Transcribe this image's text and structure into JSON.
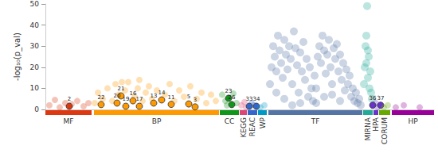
{
  "chart_data": {
    "type": "scatter",
    "y_label": "-log₁₀(p_val)",
    "xlim": [
      0,
      488
    ],
    "ylim": [
      0,
      50
    ],
    "yticks": [
      0,
      10,
      20,
      30,
      40,
      50
    ],
    "grid": false,
    "tick_labels": "y",
    "series": [
      {
        "name": "MF",
        "color": "#dc3912",
        "start": 0,
        "end": 58,
        "points": [
          [
            5,
            2,
            null
          ],
          [
            12,
            4.5,
            null
          ],
          [
            18,
            1,
            null
          ],
          [
            25,
            3,
            null
          ],
          [
            33,
            2.5,
            null
          ],
          [
            40,
            4,
            null
          ],
          [
            48,
            1.5,
            null
          ],
          [
            54,
            3,
            null
          ],
          [
            30,
            1.5,
            "2"
          ]
        ]
      },
      {
        "name": "BP",
        "color": "#ff9900",
        "start": 61,
        "end": 218,
        "points": [
          [
            62,
            3,
            null
          ],
          [
            66,
            8,
            null
          ],
          [
            72,
            5,
            null
          ],
          [
            78,
            10,
            null
          ],
          [
            84,
            4,
            null
          ],
          [
            88,
            12,
            null
          ],
          [
            92,
            7,
            null
          ],
          [
            96,
            13,
            null
          ],
          [
            100,
            9,
            null
          ],
          [
            104,
            13,
            null
          ],
          [
            112,
            6,
            null
          ],
          [
            116,
            10,
            null
          ],
          [
            118,
            14,
            null
          ],
          [
            122,
            4,
            null
          ],
          [
            126,
            8,
            null
          ],
          [
            130,
            11,
            null
          ],
          [
            134,
            5,
            null
          ],
          [
            140,
            9,
            null
          ],
          [
            150,
            7,
            null
          ],
          [
            156,
            12,
            null
          ],
          [
            162,
            4,
            null
          ],
          [
            168,
            9,
            null
          ],
          [
            174,
            6,
            null
          ],
          [
            182,
            11,
            null
          ],
          [
            190,
            5,
            null
          ],
          [
            196,
            8,
            null
          ],
          [
            202,
            3,
            null
          ],
          [
            208,
            7,
            null
          ],
          [
            214,
            4,
            null
          ],
          [
            95,
            6.4,
            "21"
          ],
          [
            110,
            4.1,
            "16"
          ],
          [
            146,
            4.5,
            "14"
          ],
          [
            70,
            2.3,
            "22"
          ],
          [
            90,
            3,
            "20"
          ],
          [
            101,
            1.5,
            "19"
          ],
          [
            118,
            1.5,
            "17"
          ],
          [
            136,
            3,
            "13"
          ],
          [
            158,
            2.4,
            "11"
          ],
          [
            180,
            2.6,
            "5"
          ],
          [
            188,
            1.2,
            "3"
          ]
        ]
      },
      {
        "name": "CC",
        "color": "#109618",
        "start": 219,
        "end": 243,
        "points": [
          [
            222,
            7,
            null
          ],
          [
            226,
            4,
            null
          ],
          [
            236,
            7.5,
            null
          ],
          [
            240,
            3,
            null
          ],
          [
            228,
            2,
            null
          ],
          [
            230,
            5.3,
            "23"
          ],
          [
            234,
            2.3,
            "26"
          ]
        ]
      },
      {
        "name": "KEGG",
        "color": "#dd4477",
        "start": 244,
        "end": 253,
        "points": [
          [
            246,
            2,
            null
          ],
          [
            250,
            3.5,
            null
          ],
          [
            252,
            1,
            null
          ]
        ]
      },
      {
        "name": "REAC",
        "color": "#3366cc",
        "start": 254,
        "end": 266,
        "points": [
          [
            259,
            3,
            null
          ],
          [
            262,
            2,
            null
          ],
          [
            256,
            1.5,
            "33"
          ],
          [
            265,
            1.5,
            "34"
          ]
        ]
      },
      {
        "name": "WP",
        "color": "#0099c6",
        "start": 267,
        "end": 278,
        "points": [
          [
            270,
            1,
            null
          ],
          [
            275,
            2,
            null
          ]
        ]
      },
      {
        "name": "TF",
        "color": "#5574a6",
        "start": 280,
        "end": 398,
        "points": [
          [
            282,
            12,
            null
          ],
          [
            284,
            20,
            null
          ],
          [
            286,
            30,
            null
          ],
          [
            288,
            25,
            null
          ],
          [
            290,
            18,
            null
          ],
          [
            292,
            35,
            null
          ],
          [
            294,
            28,
            null
          ],
          [
            296,
            22,
            null
          ],
          [
            298,
            15,
            null
          ],
          [
            300,
            33,
            null
          ],
          [
            302,
            26,
            null
          ],
          [
            304,
            19,
            null
          ],
          [
            306,
            30,
            null
          ],
          [
            308,
            24,
            null
          ],
          [
            310,
            12,
            null
          ],
          [
            312,
            37,
            null
          ],
          [
            314,
            29,
            null
          ],
          [
            316,
            21,
            null
          ],
          [
            318,
            8,
            null
          ],
          [
            320,
            27,
            null
          ],
          [
            322,
            18,
            null
          ],
          [
            324,
            32,
            null
          ],
          [
            326,
            14,
            null
          ],
          [
            328,
            24,
            null
          ],
          [
            330,
            6,
            null
          ],
          [
            332,
            20,
            null
          ],
          [
            334,
            10,
            null
          ],
          [
            336,
            4,
            null
          ],
          [
            338,
            16,
            null
          ],
          [
            340,
            3,
            null
          ],
          [
            342,
            25,
            null
          ],
          [
            344,
            30,
            null
          ],
          [
            346,
            22,
            null
          ],
          [
            348,
            35,
            null
          ],
          [
            350,
            28,
            null
          ],
          [
            352,
            17,
            null
          ],
          [
            354,
            26,
            null
          ],
          [
            356,
            33,
            null
          ],
          [
            358,
            20,
            null
          ],
          [
            360,
            12,
            null
          ],
          [
            362,
            29,
            null
          ],
          [
            364,
            24,
            null
          ],
          [
            366,
            31,
            null
          ],
          [
            368,
            18,
            null
          ],
          [
            370,
            26,
            null
          ],
          [
            372,
            14,
            null
          ],
          [
            374,
            22,
            null
          ],
          [
            376,
            9,
            null
          ],
          [
            378,
            19,
            null
          ],
          [
            380,
            12,
            null
          ],
          [
            382,
            16,
            null
          ],
          [
            384,
            6,
            null
          ],
          [
            386,
            10,
            null
          ],
          [
            388,
            4,
            null
          ],
          [
            390,
            8,
            null
          ],
          [
            392,
            3,
            null
          ],
          [
            394,
            5,
            null
          ],
          [
            396,
            2,
            null
          ],
          [
            300,
            5,
            null
          ],
          [
            320,
            3,
            null
          ],
          [
            350,
            6,
            null
          ],
          [
            370,
            4,
            null
          ],
          [
            290,
            8,
            null
          ],
          [
            310,
            2,
            null
          ],
          [
            340,
            10,
            null
          ],
          [
            360,
            7,
            null
          ]
        ]
      },
      {
        "name": "MIRNA",
        "color": "#22aa99",
        "start": 399,
        "end": 411,
        "points": [
          [
            400,
            12,
            null
          ],
          [
            401,
            20,
            null
          ],
          [
            402,
            30,
            null
          ],
          [
            403,
            22,
            null
          ],
          [
            404,
            49,
            null
          ],
          [
            405,
            15,
            null
          ],
          [
            406,
            25,
            null
          ],
          [
            407,
            10,
            null
          ],
          [
            408,
            18,
            null
          ],
          [
            409,
            8,
            null
          ],
          [
            410,
            5,
            null
          ],
          [
            403,
            35,
            null
          ],
          [
            405,
            28,
            null
          ]
        ]
      },
      {
        "name": "HPA",
        "color": "#6633cc",
        "start": 412,
        "end": 418,
        "points": [
          [
            415,
            3,
            null
          ],
          [
            417,
            1,
            null
          ],
          [
            411,
            2,
            "36"
          ],
          [
            421,
            2,
            "37"
          ]
        ]
      },
      {
        "name": "CORUM",
        "color": "#66aa00",
        "start": 419,
        "end": 433,
        "points": [
          [
            425,
            1,
            null
          ],
          [
            430,
            2,
            null
          ]
        ]
      },
      {
        "name": "HP",
        "color": "#990099",
        "start": 435,
        "end": 488,
        "points": [
          [
            440,
            1,
            null
          ],
          [
            450,
            2,
            null
          ],
          [
            470,
            1,
            null
          ]
        ]
      }
    ]
  }
}
